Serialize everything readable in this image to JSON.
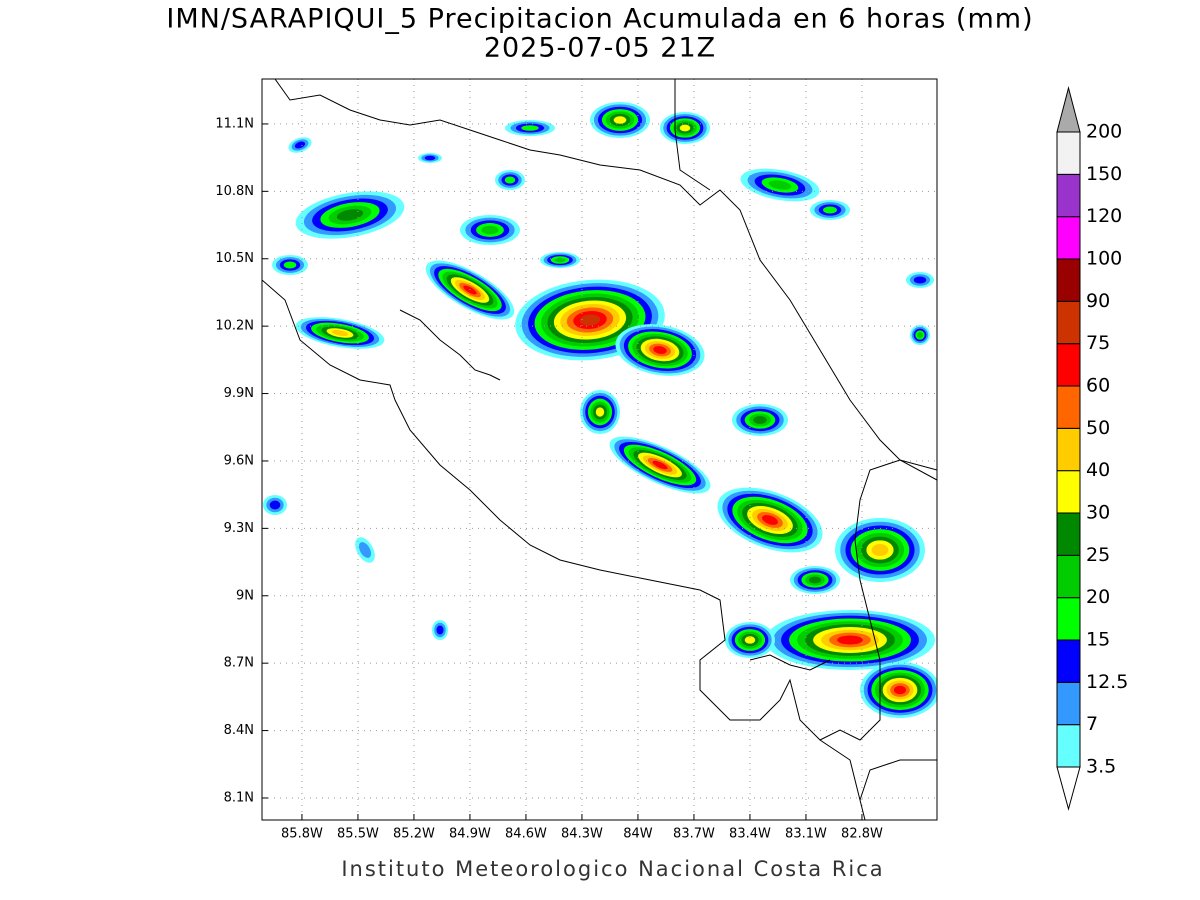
{
  "map": {
    "title": "IMN/SARAPIQUI_5 Precipitacion Acumulada en 6 horas (mm)",
    "subtitle": "2025-07-05 21Z",
    "footer": "Instituto Meteorologico Nacional Costa Rica",
    "xlim": [
      -86.014,
      -82.398
    ],
    "ylim": [
      8.002,
      11.3
    ],
    "xticks": [
      {
        "value": -85.8,
        "label": "85.8W"
      },
      {
        "value": -85.5,
        "label": "85.5W"
      },
      {
        "value": -85.2,
        "label": "85.2W"
      },
      {
        "value": -84.9,
        "label": "84.9W"
      },
      {
        "value": -84.6,
        "label": "84.6W"
      },
      {
        "value": -84.3,
        "label": "84.3W"
      },
      {
        "value": -84.0,
        "label": "84W"
      },
      {
        "value": -83.7,
        "label": "83.7W"
      },
      {
        "value": -83.4,
        "label": "83.4W"
      },
      {
        "value": -83.1,
        "label": "83.1W"
      },
      {
        "value": -82.8,
        "label": "82.8W"
      }
    ],
    "yticks": [
      {
        "value": 8.1,
        "label": "8.1N"
      },
      {
        "value": 8.4,
        "label": "8.4N"
      },
      {
        "value": 8.7,
        "label": "8.7N"
      },
      {
        "value": 9.0,
        "label": "9N"
      },
      {
        "value": 9.3,
        "label": "9.3N"
      },
      {
        "value": 9.6,
        "label": "9.6N"
      },
      {
        "value": 9.9,
        "label": "9.9N"
      },
      {
        "value": 10.2,
        "label": "10.2N"
      },
      {
        "value": 10.5,
        "label": "10.5N"
      },
      {
        "value": 10.8,
        "label": "10.8N"
      },
      {
        "value": 11.1,
        "label": "11.1N"
      }
    ],
    "grid": true,
    "colorbar": {
      "levels": [
        3.5,
        7,
        12.5,
        15,
        20,
        25,
        30,
        40,
        50,
        60,
        75,
        90,
        100,
        120,
        150,
        200
      ],
      "colors": [
        "#ffffff",
        "#66ffff",
        "#3399ff",
        "#0000ff",
        "#00ff00",
        "#00cc00",
        "#008800",
        "#ffff00",
        "#ffcc00",
        "#ff6600",
        "#ff0000",
        "#cc3300",
        "#990000",
        "#ff00ff",
        "#9933cc",
        "#f2f2f2",
        "#aaaaaa"
      ]
    }
  }
}
